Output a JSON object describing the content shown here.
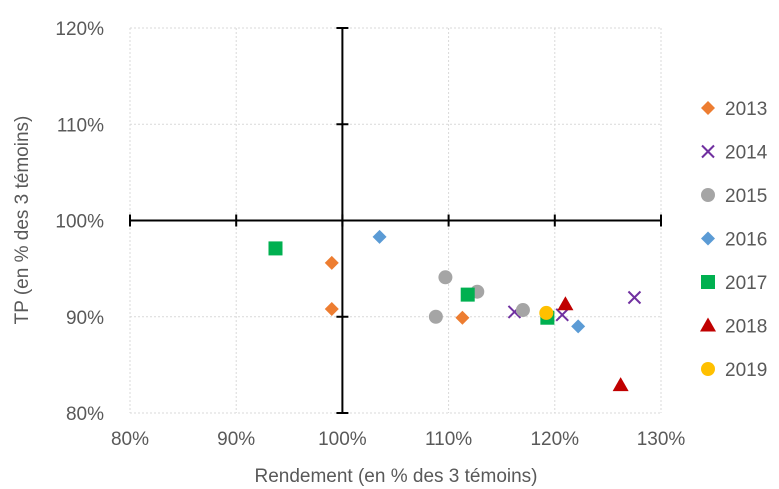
{
  "chart_data": {
    "type": "scatter",
    "xlabel": "Rendement (en % des 3 témoins)",
    "ylabel": "TP (en % des 3 témoins)",
    "xlim": [
      0.8,
      1.3
    ],
    "ylim": [
      0.8,
      1.2
    ],
    "x_ticks": [
      0.8,
      0.9,
      1.0,
      1.1,
      1.2,
      1.3
    ],
    "x_tick_labels": [
      "80%",
      "90%",
      "100%",
      "110%",
      "120%",
      "130%"
    ],
    "y_ticks": [
      0.8,
      0.9,
      1.0,
      1.1,
      1.2
    ],
    "y_tick_labels": [
      "80%",
      "90%",
      "100%",
      "110%",
      "120%"
    ],
    "grid": "dotted",
    "legend_position": "right",
    "crosshair": {
      "x": 1.0,
      "y": 1.0
    },
    "series": [
      {
        "name": "2013",
        "marker": "diamond",
        "color": "#ED7D31",
        "points": [
          [
            0.99,
            0.956
          ],
          [
            0.99,
            0.908
          ],
          [
            1.113,
            0.899
          ]
        ]
      },
      {
        "name": "2014",
        "marker": "x",
        "color": "#7030A0",
        "points": [
          [
            1.162,
            0.905
          ],
          [
            1.207,
            0.902
          ],
          [
            1.275,
            0.92
          ]
        ]
      },
      {
        "name": "2015",
        "marker": "circle",
        "color": "#A5A5A5",
        "points": [
          [
            1.088,
            0.9
          ],
          [
            1.097,
            0.941
          ],
          [
            1.127,
            0.926
          ],
          [
            1.17,
            0.907
          ]
        ]
      },
      {
        "name": "2016",
        "marker": "diamond",
        "color": "#5B9BD5",
        "points": [
          [
            1.035,
            0.983
          ],
          [
            1.222,
            0.89
          ]
        ]
      },
      {
        "name": "2017",
        "marker": "square",
        "color": "#00B050",
        "points": [
          [
            0.937,
            0.971
          ],
          [
            1.118,
            0.923
          ],
          [
            1.193,
            0.899
          ]
        ]
      },
      {
        "name": "2018",
        "marker": "triangle",
        "color": "#C00000",
        "points": [
          [
            1.21,
            0.913
          ],
          [
            1.262,
            0.829
          ]
        ]
      },
      {
        "name": "2019",
        "marker": "circle",
        "color": "#FFC000",
        "points": [
          [
            1.192,
            0.904
          ]
        ]
      }
    ]
  }
}
